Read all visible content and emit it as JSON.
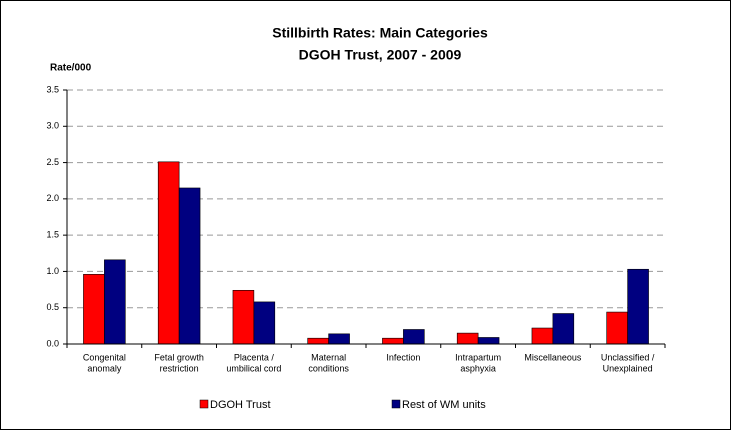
{
  "chart_data": {
    "type": "bar",
    "title": [
      "Stillbirth Rates: Main Categories",
      "DGOH Trust, 2007 - 2009"
    ],
    "y_label": "Rate/000",
    "categories": [
      [
        "Congenital",
        "anomaly"
      ],
      [
        "Fetal growth",
        "restriction"
      ],
      [
        "Placenta /",
        "umbilical cord"
      ],
      [
        "Maternal",
        "conditions"
      ],
      [
        "Infection"
      ],
      [
        "Intrapartum",
        "asphyxia"
      ],
      [
        "Miscellaneous"
      ],
      [
        "Unclassified /",
        "Unexplained"
      ]
    ],
    "series": [
      {
        "name": "DGOH Trust",
        "color": "#ff0000",
        "values": [
          0.96,
          2.51,
          0.74,
          0.08,
          0.08,
          0.15,
          0.22,
          0.44
        ]
      },
      {
        "name": "Rest of WM units",
        "color": "#000080",
        "values": [
          1.16,
          2.15,
          0.58,
          0.14,
          0.2,
          0.09,
          0.42,
          1.03
        ]
      }
    ],
    "ylim": [
      0,
      3.5
    ],
    "yticks": [
      {
        "value": 0,
        "label": "0.0"
      },
      0.5,
      {
        "value": 1,
        "label": "1.0"
      },
      1.5,
      {
        "value": 2,
        "label": "2.0"
      },
      2.5,
      {
        "value": 3,
        "label": "3.0"
      },
      3.5
    ],
    "grid": true,
    "legend": "bottom"
  }
}
